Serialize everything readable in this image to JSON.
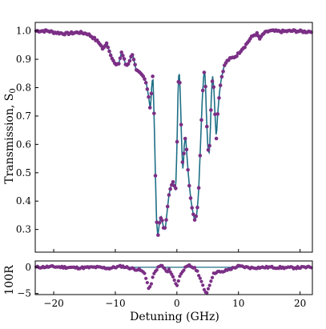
{
  "chart_data": [
    {
      "type": "line",
      "panel": "main",
      "xlabel": "",
      "ylabel": "Transmission, S",
      "ylabel_sub": "0",
      "xlim": [
        -23,
        22
      ],
      "ylim": [
        0.22,
        1.03
      ],
      "x_ticks": [
        -20,
        -10,
        0,
        10,
        20
      ],
      "x_tick_labels": [],
      "y_ticks": [
        0.3,
        0.4,
        0.5,
        0.6,
        0.7,
        0.8,
        0.9,
        1.0
      ],
      "y_tick_labels": [
        "0.3",
        "0.4",
        "0.5",
        "0.6",
        "0.7",
        "0.8",
        "0.9",
        "1.0"
      ],
      "grid": false,
      "colors": {
        "fit_line": "#1f6f86",
        "data_points": "#7b2f85"
      },
      "fit_knots": [
        [
          -23,
          1.0
        ],
        [
          -21,
          1.0
        ],
        [
          -20,
          0.995
        ],
        [
          -18,
          0.99
        ],
        [
          -16,
          0.995
        ],
        [
          -14.5,
          0.99
        ],
        [
          -13.5,
          0.975
        ],
        [
          -13,
          0.965
        ],
        [
          -12.5,
          0.955
        ],
        [
          -12,
          0.935
        ],
        [
          -11.6,
          0.948
        ],
        [
          -11.4,
          0.96
        ],
        [
          -11.0,
          0.93
        ],
        [
          -10.5,
          0.905
        ],
        [
          -10.0,
          0.88
        ],
        [
          -9.5,
          0.88
        ],
        [
          -9.2,
          0.905
        ],
        [
          -9.0,
          0.925
        ],
        [
          -8.7,
          0.91
        ],
        [
          -8.3,
          0.88
        ],
        [
          -8.0,
          0.88
        ],
        [
          -7.5,
          0.905
        ],
        [
          -7.2,
          0.92
        ],
        [
          -7.0,
          0.9
        ],
        [
          -6.6,
          0.86
        ],
        [
          -6.0,
          0.85
        ],
        [
          -5.5,
          0.84
        ],
        [
          -5.0,
          0.82
        ],
        [
          -4.6,
          0.77
        ],
        [
          -4.3,
          0.72
        ],
        [
          -4.1,
          0.8
        ],
        [
          -3.9,
          0.845
        ],
        [
          -3.7,
          0.7
        ],
        [
          -3.5,
          0.5
        ],
        [
          -3.3,
          0.33
        ],
        [
          -3.1,
          0.275
        ],
        [
          -2.8,
          0.33
        ],
        [
          -2.5,
          0.345
        ],
        [
          -2.2,
          0.31
        ],
        [
          -1.9,
          0.3
        ],
        [
          -1.6,
          0.36
        ],
        [
          -1.3,
          0.42
        ],
        [
          -1.0,
          0.45
        ],
        [
          -0.7,
          0.47
        ],
        [
          -0.4,
          0.45
        ],
        [
          -0.2,
          0.44
        ],
        [
          0.0,
          0.58
        ],
        [
          0.2,
          0.8
        ],
        [
          0.35,
          0.87
        ],
        [
          0.55,
          0.78
        ],
        [
          0.8,
          0.58
        ],
        [
          1.0,
          0.5
        ],
        [
          1.2,
          0.6
        ],
        [
          1.4,
          0.63
        ],
        [
          1.6,
          0.57
        ],
        [
          1.8,
          0.51
        ],
        [
          2.0,
          0.46
        ],
        [
          2.3,
          0.4
        ],
        [
          2.6,
          0.36
        ],
        [
          2.9,
          0.33
        ],
        [
          3.2,
          0.35
        ],
        [
          3.5,
          0.42
        ],
        [
          3.8,
          0.58
        ],
        [
          4.1,
          0.75
        ],
        [
          4.4,
          0.86
        ],
        [
          4.6,
          0.84
        ],
        [
          4.8,
          0.7
        ],
        [
          5.0,
          0.6
        ],
        [
          5.2,
          0.56
        ],
        [
          5.4,
          0.62
        ],
        [
          5.6,
          0.78
        ],
        [
          5.8,
          0.84
        ],
        [
          6.0,
          0.8
        ],
        [
          6.2,
          0.7
        ],
        [
          6.4,
          0.62
        ],
        [
          6.6,
          0.7
        ],
        [
          6.9,
          0.78
        ],
        [
          7.2,
          0.83
        ],
        [
          7.6,
          0.87
        ],
        [
          8.0,
          0.89
        ],
        [
          8.5,
          0.9
        ],
        [
          9.0,
          0.905
        ],
        [
          9.5,
          0.91
        ],
        [
          10.0,
          0.92
        ],
        [
          10.5,
          0.935
        ],
        [
          11.0,
          0.945
        ],
        [
          11.5,
          0.96
        ],
        [
          12.0,
          0.975
        ],
        [
          12.5,
          0.985
        ],
        [
          13.0,
          0.99
        ],
        [
          13.5,
          0.97
        ],
        [
          14.0,
          0.99
        ],
        [
          15,
          1.0
        ],
        [
          17,
          0.998
        ],
        [
          19,
          1.0
        ],
        [
          21,
          0.997
        ],
        [
          22,
          1.0
        ]
      ]
    },
    {
      "type": "scatter",
      "panel": "residual",
      "xlabel": "Detuning (GHz)",
      "ylabel": "100R",
      "xlim": [
        -23,
        22
      ],
      "ylim": [
        -5.2,
        1.2
      ],
      "x_ticks": [
        -20,
        -10,
        0,
        10,
        20
      ],
      "x_tick_labels": [
        "−20",
        "−10",
        "0",
        "10",
        "20"
      ],
      "y_ticks": [
        0,
        -5
      ],
      "y_tick_labels": [
        "0",
        "−5"
      ],
      "grid": false,
      "colors": {
        "zero_line": "#1f6f86",
        "data_points": "#7b2f85"
      },
      "residual_knots": [
        [
          -23,
          0.0
        ],
        [
          -20,
          0.1
        ],
        [
          -16,
          -0.1
        ],
        [
          -13,
          0.0
        ],
        [
          -11,
          -0.2
        ],
        [
          -9,
          0.2
        ],
        [
          -7,
          -0.3
        ],
        [
          -6,
          -0.5
        ],
        [
          -5.2,
          -1.2
        ],
        [
          -4.8,
          -3.0
        ],
        [
          -4.5,
          -4.4
        ],
        [
          -4.2,
          -3.2
        ],
        [
          -3.8,
          -1.5
        ],
        [
          -3.2,
          -0.2
        ],
        [
          -2.5,
          0.4
        ],
        [
          -2.0,
          -0.3
        ],
        [
          -1.6,
          -1.0
        ],
        [
          -1.2,
          -0.4
        ],
        [
          -0.8,
          -1.4
        ],
        [
          -0.4,
          -2.5
        ],
        [
          0.0,
          -3.5
        ],
        [
          0.4,
          -2.0
        ],
        [
          0.8,
          -0.8
        ],
        [
          1.3,
          -0.2
        ],
        [
          2.0,
          0.3
        ],
        [
          2.6,
          0.0
        ],
        [
          3.2,
          -0.5
        ],
        [
          3.6,
          -1.5
        ],
        [
          4.0,
          -2.8
        ],
        [
          4.4,
          -4.3
        ],
        [
          4.8,
          -4.9
        ],
        [
          5.2,
          -3.8
        ],
        [
          5.6,
          -2.2
        ],
        [
          6.0,
          -1.2
        ],
        [
          6.5,
          -0.8
        ],
        [
          7.2,
          -1.0
        ],
        [
          8.0,
          -0.6
        ],
        [
          9.0,
          -0.2
        ],
        [
          10.0,
          0.2
        ],
        [
          12.0,
          -0.1
        ],
        [
          15.0,
          0.0
        ],
        [
          18.0,
          -0.1
        ],
        [
          22.0,
          0.0
        ]
      ]
    }
  ]
}
